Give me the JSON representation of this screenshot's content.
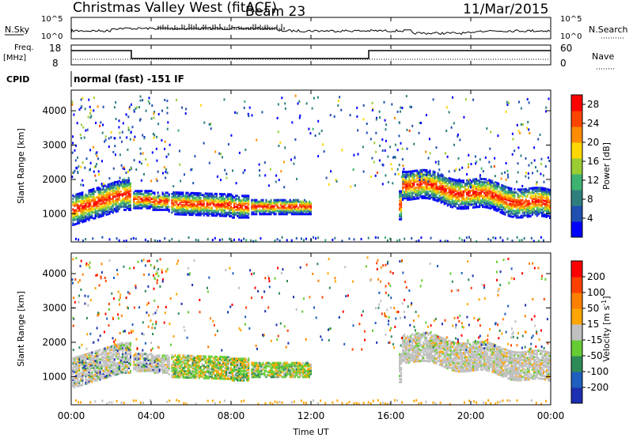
{
  "header": {
    "station": "Christmas Valley West (fitACF)",
    "beam": "Beam 23",
    "date": "11/Mar/2015"
  },
  "noise_panel": {
    "left_label": "N.Sky",
    "right_label": "N.Search",
    "left_ticks": [
      "10^5",
      "10^0"
    ],
    "right_ticks": [
      "10^5",
      "10^0"
    ]
  },
  "freq_panel": {
    "label_line1": "Freq.",
    "label_line2": "[MHz]",
    "right_label": "Nave",
    "left_ticks": [
      "18",
      "8"
    ],
    "right_ticks": [
      "60",
      "0"
    ]
  },
  "cpid": {
    "label": "CPID",
    "text": "normal (fast) -151 IF"
  },
  "chart_data": [
    {
      "type": "heatmap",
      "name": "power",
      "ylabel": "Slant Range [km]",
      "xlabel": "Time UT",
      "x_ticks": [
        "00:00",
        "04:00",
        "08:00",
        "12:00",
        "16:00",
        "20:00",
        "00:00"
      ],
      "y_ticks": [
        1000,
        2000,
        3000,
        4000
      ],
      "ylim": [
        180,
        4600
      ],
      "xlim_hours": [
        0,
        24
      ],
      "colorbar": {
        "label": "Power [dB]",
        "ticks": [
          4,
          8,
          12,
          16,
          20,
          24,
          28
        ],
        "range": [
          0,
          30
        ],
        "colors": [
          "#0000ff",
          "#1f4fb0",
          "#2f7f7f",
          "#3cb371",
          "#9acd32",
          "#ffd700",
          "#ff8c00",
          "#ff4500",
          "#ff0000"
        ]
      }
    },
    {
      "type": "heatmap",
      "name": "velocity",
      "ylabel": "Slant Range [km]",
      "xlabel": "Time UT",
      "x_ticks": [
        "00:00",
        "04:00",
        "08:00",
        "12:00",
        "16:00",
        "20:00",
        "00:00"
      ],
      "y_ticks": [
        1000,
        2000,
        3000,
        4000
      ],
      "ylim": [
        180,
        4600
      ],
      "xlim_hours": [
        0,
        24
      ],
      "colorbar": {
        "label": "Velocity [m s",
        "label_sup": "-1",
        "label_close": "]",
        "ticks": [
          "200",
          "100",
          "50",
          "15",
          "-15",
          "-50",
          "-100",
          "-200"
        ],
        "colors": [
          "#1c2fb0",
          "#1f5fbf",
          "#2e8b57",
          "#66cc33",
          "#c0c0c0",
          "#ffa500",
          "#ff7f00",
          "#ff4000",
          "#ff0000"
        ]
      }
    }
  ]
}
